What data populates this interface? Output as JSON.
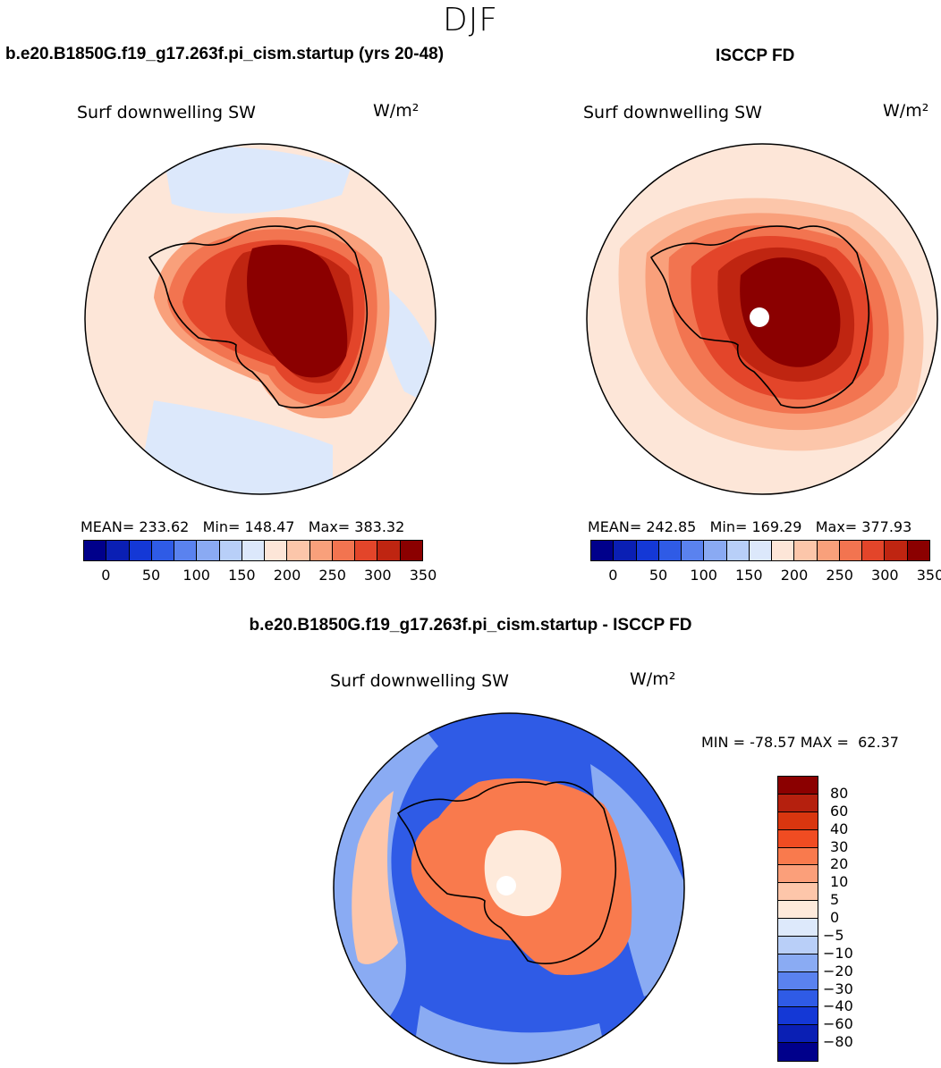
{
  "season": "DJF",
  "panels": {
    "model": {
      "case_title": "b.e20.B1850G.f19_g17.263f.pi_cism.startup (yrs 20-48)",
      "variable": "Surf downwelling SW",
      "units": "W/m²",
      "mean_label": "MEAN=",
      "mean": "233.62",
      "min_label": "Min=",
      "min": "148.47",
      "max_label": "Max=",
      "max": "383.32"
    },
    "obs": {
      "case_title": "ISCCP FD",
      "variable": "Surf downwelling SW",
      "units": "W/m²",
      "mean_label": "MEAN=",
      "mean": "242.85",
      "min_label": "Min=",
      "min": "169.29",
      "max_label": "Max=",
      "max": "377.93"
    },
    "diff": {
      "case_title": "b.e20.B1850G.f19_g17.263f.pi_cism.startup - ISCCP FD",
      "variable": "Surf downwelling SW",
      "units": "W/m²",
      "min_label": "MIN =",
      "min": "-78.57",
      "max_label": "MAX =",
      "max": "62.37"
    }
  },
  "colorbar_abs": {
    "colors": [
      "#00008b",
      "#0a1fb4",
      "#1438d6",
      "#2f5be6",
      "#5a82ef",
      "#8aaaf3",
      "#b8cff8",
      "#dce8fb",
      "#fde6d8",
      "#fcc6aa",
      "#f9a07b",
      "#f27450",
      "#e3452a",
      "#bf2511",
      "#8b0000"
    ],
    "tick_labels": [
      "0",
      "50",
      "100",
      "150",
      "200",
      "250",
      "300",
      "350"
    ]
  },
  "colorbar_diff": {
    "colors_top_to_bottom": [
      "#8b0000",
      "#b5200e",
      "#d9360f",
      "#f04c22",
      "#f97a4d",
      "#fb9f7a",
      "#fdc6aa",
      "#feeadb",
      "#dde9fb",
      "#b9cff8",
      "#8aabf3",
      "#5a82ef",
      "#2f5be6",
      "#1438d6",
      "#0a1fb4",
      "#00008b"
    ],
    "tick_labels": [
      "80",
      "60",
      "40",
      "30",
      "20",
      "10",
      "5",
      "0",
      "−5",
      "−10",
      "−20",
      "−30",
      "−40",
      "−60",
      "−80"
    ]
  },
  "map_colors": {
    "model_ocean": "#fde6d8",
    "model_ocean_low": "#dce8fb",
    "model_coast_1": "#f9a07b",
    "model_coast_2": "#f27450",
    "model_coast_3": "#e3452a",
    "model_inner": "#bf2511",
    "model_core": "#8b0000",
    "obs_ocean": "#fde6d8",
    "obs_ring": "#fcc6aa",
    "diff_ocean": "#2f5be6",
    "diff_ocean_light": "#8aabf3",
    "diff_ocean_pale": "#fdc6aa",
    "diff_land": "#f97a4d",
    "diff_center": "#feeadb"
  }
}
